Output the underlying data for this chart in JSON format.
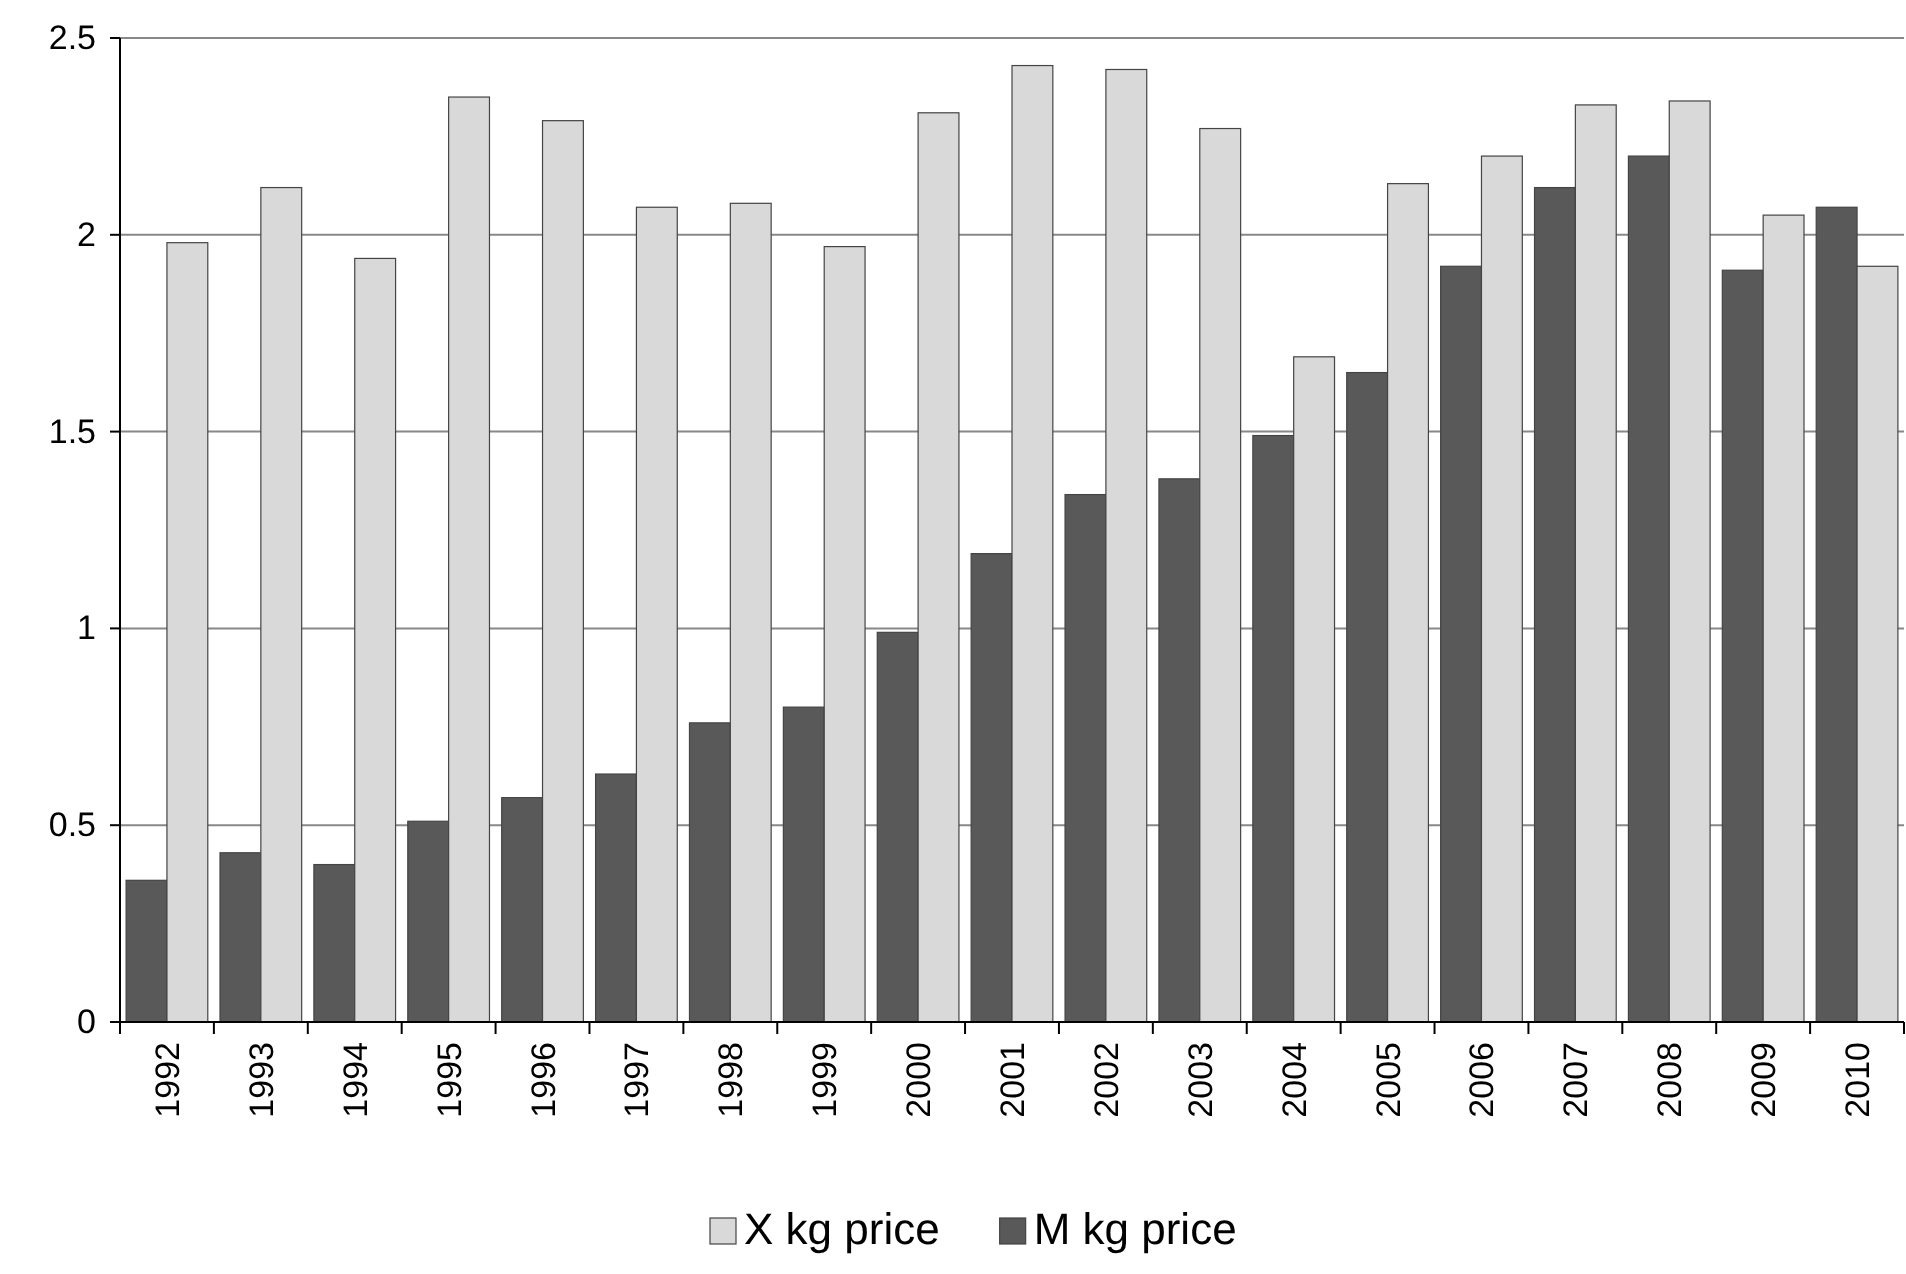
{
  "chart_data": {
    "type": "bar",
    "categories": [
      "1992",
      "1993",
      "1994",
      "1995",
      "1996",
      "1997",
      "1998",
      "1999",
      "2000",
      "2001",
      "2002",
      "2003",
      "2004",
      "2005",
      "2006",
      "2007",
      "2008",
      "2009",
      "2010"
    ],
    "series": [
      {
        "name": "M kg price",
        "color": "#595959",
        "values": [
          0.36,
          0.43,
          0.4,
          0.51,
          0.57,
          0.63,
          0.76,
          0.8,
          0.99,
          1.19,
          1.34,
          1.38,
          1.49,
          1.65,
          1.92,
          2.12,
          2.2,
          1.91,
          2.07
        ]
      },
      {
        "name": "X kg price",
        "color": "#d9d9d9",
        "values": [
          1.98,
          2.12,
          1.94,
          2.35,
          2.29,
          2.07,
          2.08,
          1.97,
          2.31,
          2.43,
          2.42,
          2.27,
          1.69,
          2.13,
          2.2,
          2.33,
          2.34,
          2.05,
          1.92
        ]
      }
    ],
    "ylim": [
      0,
      2.5
    ],
    "yticks": [
      0,
      0.5,
      1,
      1.5,
      2,
      2.5
    ],
    "grid": "y",
    "legend": "bottom"
  }
}
